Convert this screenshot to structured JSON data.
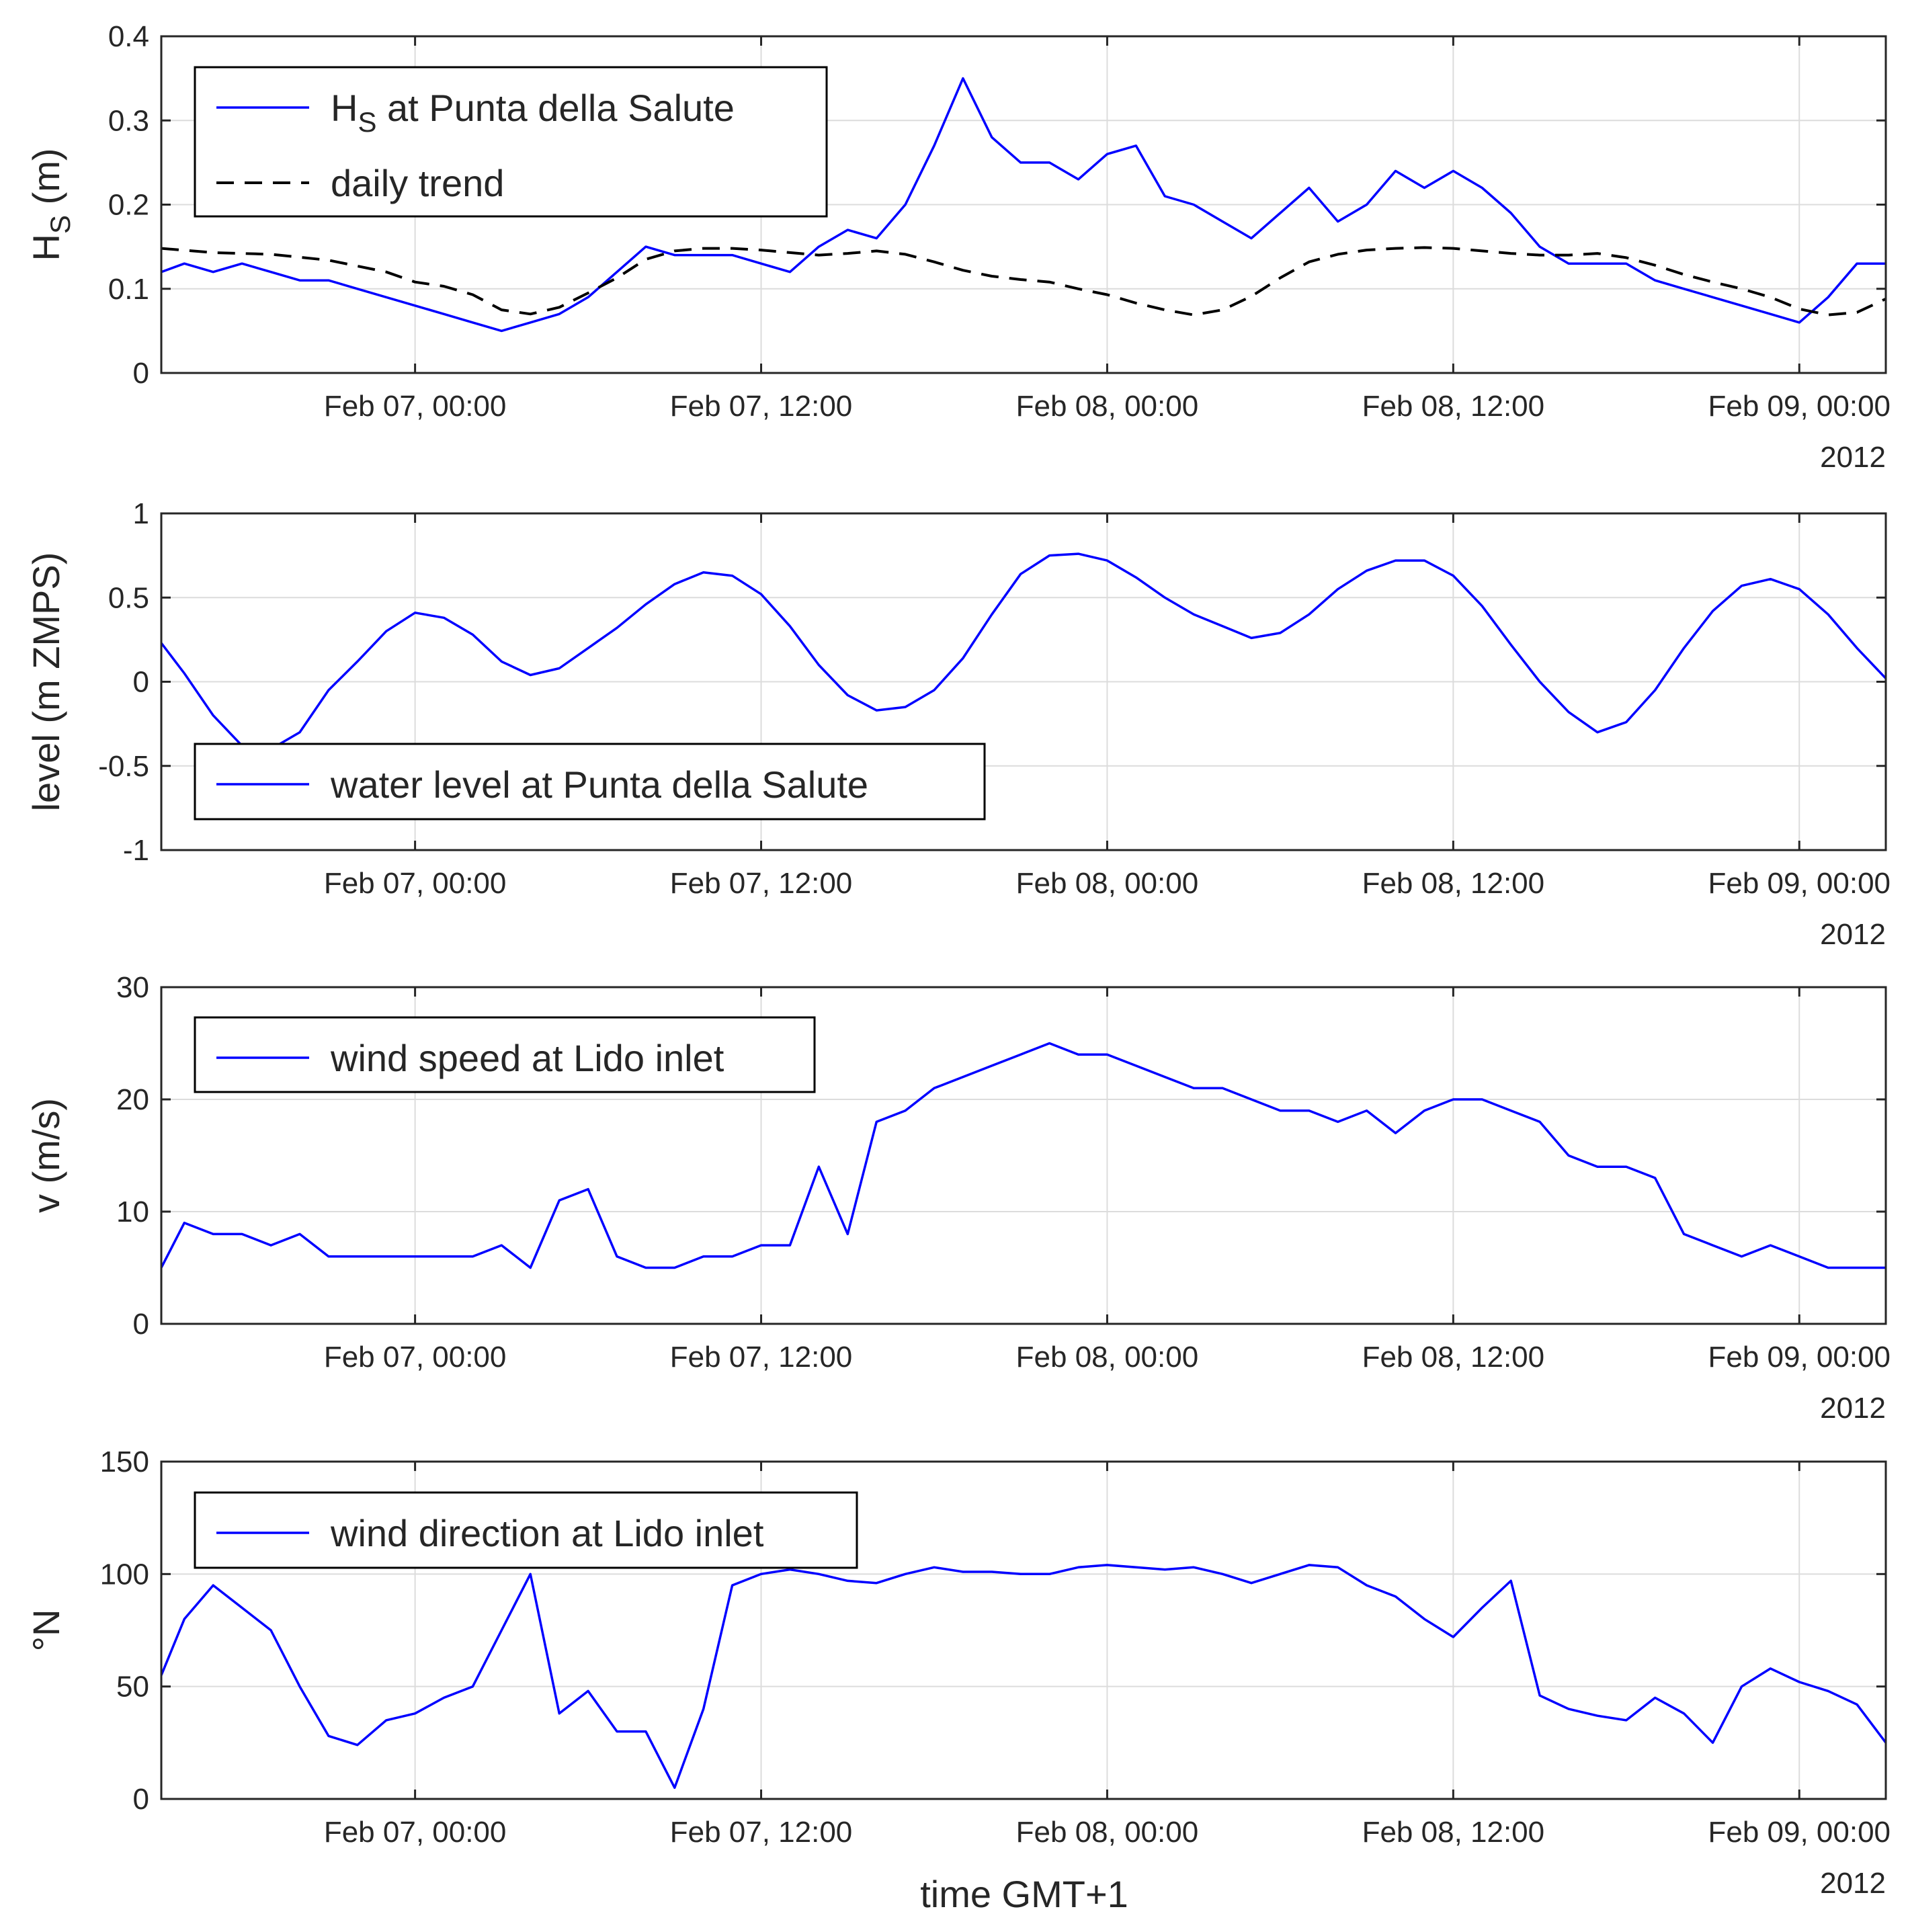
{
  "figure": {
    "xlabel": "time GMT+1",
    "year_label": "2012",
    "x_range_hours": [
      -8.8,
      51
    ],
    "x_tick_hours": [
      0,
      12,
      24,
      36,
      48
    ],
    "x_tick_labels": [
      "Feb 07, 00:00",
      "Feb 07, 12:00",
      "Feb 08, 00:00",
      "Feb 08, 12:00",
      "Feb 09, 00:00"
    ]
  },
  "colors": {
    "series": "#0000ff",
    "trend": "#000000",
    "grid": "#dcdcdc",
    "axis": "#262626"
  },
  "chart_data": [
    {
      "id": "hs",
      "type": "line",
      "ylabel": "H",
      "ylabel_sub": "S",
      "ylabel_tail": " (m)",
      "ylim": [
        0,
        0.4
      ],
      "y_ticks": [
        0,
        0.1,
        0.2,
        0.3,
        0.4
      ],
      "y_tick_labels": [
        "0",
        "0.1",
        "0.2",
        "0.3",
        "0.4"
      ],
      "legend": {
        "entries": [
          {
            "series": 0,
            "label": "H",
            "sub": "S",
            "tail": " at Punta della Salute"
          },
          {
            "series": 1,
            "label": "daily trend"
          }
        ]
      },
      "series": [
        {
          "name": "H_S at Punta della Salute",
          "style": "solid",
          "x": [
            -8.8,
            -8,
            -7,
            -6,
            -5,
            -4,
            -3,
            -2,
            -1,
            0,
            1,
            2,
            3,
            4,
            5,
            6,
            7,
            8,
            9,
            10,
            11,
            12,
            13,
            14,
            15,
            16,
            17,
            18,
            19,
            20,
            21,
            22,
            23,
            24,
            25,
            26,
            27,
            28,
            29,
            30,
            31,
            32,
            33,
            34,
            35,
            36,
            37,
            38,
            39,
            40,
            41,
            42,
            43,
            44,
            45,
            46,
            47,
            48,
            49,
            50,
            51
          ],
          "values": [
            0.12,
            0.13,
            0.12,
            0.13,
            0.12,
            0.11,
            0.11,
            0.1,
            0.09,
            0.08,
            0.07,
            0.06,
            0.05,
            0.06,
            0.07,
            0.09,
            0.12,
            0.15,
            0.14,
            0.14,
            0.14,
            0.13,
            0.12,
            0.15,
            0.17,
            0.16,
            0.2,
            0.27,
            0.35,
            0.28,
            0.25,
            0.25,
            0.23,
            0.26,
            0.27,
            0.21,
            0.2,
            0.18,
            0.16,
            0.19,
            0.22,
            0.18,
            0.2,
            0.24,
            0.22,
            0.24,
            0.22,
            0.19,
            0.15,
            0.13,
            0.13,
            0.13,
            0.11,
            0.1,
            0.09,
            0.08,
            0.07,
            0.06,
            0.09,
            0.13,
            0.13
          ]
        },
        {
          "name": "daily trend",
          "style": "dashed",
          "x": [
            -8.8,
            -7,
            -5,
            -3,
            -1,
            0,
            1,
            2,
            3,
            4,
            5,
            6,
            7,
            8,
            9,
            10,
            11,
            12,
            13,
            14,
            15,
            16,
            17,
            18,
            19,
            20,
            21,
            22,
            23,
            24,
            25,
            26,
            27,
            28,
            29,
            30,
            31,
            32,
            33,
            34,
            35,
            36,
            37,
            38,
            39,
            40,
            41,
            42,
            43,
            44,
            45,
            46,
            47,
            48,
            49,
            50,
            51
          ],
          "values": [
            0.148,
            0.143,
            0.141,
            0.134,
            0.12,
            0.108,
            0.103,
            0.093,
            0.075,
            0.07,
            0.078,
            0.095,
            0.113,
            0.135,
            0.145,
            0.148,
            0.148,
            0.146,
            0.143,
            0.14,
            0.142,
            0.145,
            0.141,
            0.132,
            0.122,
            0.115,
            0.111,
            0.108,
            0.1,
            0.093,
            0.083,
            0.075,
            0.069,
            0.075,
            0.091,
            0.113,
            0.132,
            0.141,
            0.146,
            0.148,
            0.149,
            0.148,
            0.145,
            0.142,
            0.14,
            0.14,
            0.142,
            0.137,
            0.128,
            0.117,
            0.108,
            0.1,
            0.09,
            0.076,
            0.069,
            0.072,
            0.088
          ]
        }
      ]
    },
    {
      "id": "level",
      "type": "line",
      "ylabel": "level (m ZMPS)",
      "ylim": [
        -1,
        1
      ],
      "y_ticks": [
        -1,
        -0.5,
        0,
        0.5,
        1
      ],
      "y_tick_labels": [
        "-1",
        "-0.5",
        "0",
        "0.5",
        "1"
      ],
      "legend": {
        "entries": [
          {
            "series": 0,
            "label": "water level at Punta della Salute"
          }
        ]
      },
      "series": [
        {
          "name": "water level at Punta della Salute",
          "style": "solid",
          "x": [
            -8.8,
            -8,
            -7,
            -6,
            -5,
            -4,
            -3,
            -2,
            -1,
            0,
            1,
            2,
            3,
            4,
            5,
            6,
            7,
            8,
            9,
            10,
            11,
            12,
            13,
            14,
            15,
            16,
            17,
            18,
            19,
            20,
            21,
            22,
            23,
            24,
            25,
            26,
            27,
            28,
            29,
            30,
            31,
            32,
            33,
            34,
            35,
            36,
            37,
            38,
            39,
            40,
            41,
            42,
            43,
            44,
            45,
            46,
            47,
            48,
            49,
            50,
            51
          ],
          "values": [
            0.23,
            0.05,
            -0.2,
            -0.38,
            -0.4,
            -0.3,
            -0.05,
            0.12,
            0.3,
            0.41,
            0.38,
            0.28,
            0.12,
            0.04,
            0.08,
            0.2,
            0.32,
            0.46,
            0.58,
            0.65,
            0.63,
            0.52,
            0.33,
            0.1,
            -0.08,
            -0.17,
            -0.15,
            -0.05,
            0.14,
            0.4,
            0.64,
            0.75,
            0.76,
            0.72,
            0.62,
            0.5,
            0.4,
            0.33,
            0.26,
            0.29,
            0.4,
            0.55,
            0.66,
            0.72,
            0.72,
            0.63,
            0.45,
            0.22,
            0.0,
            -0.18,
            -0.3,
            -0.24,
            -0.05,
            0.2,
            0.42,
            0.57,
            0.61,
            0.55,
            0.4,
            0.2,
            0.02
          ]
        }
      ]
    },
    {
      "id": "wind_speed",
      "type": "line",
      "ylabel": "v (m/s)",
      "ylim": [
        0,
        30
      ],
      "y_ticks": [
        0,
        10,
        20,
        30
      ],
      "y_tick_labels": [
        "0",
        "10",
        "20",
        "30"
      ],
      "legend": {
        "entries": [
          {
            "series": 0,
            "label": "wind speed at Lido inlet"
          }
        ]
      },
      "series": [
        {
          "name": "wind speed at Lido inlet",
          "style": "solid",
          "x": [
            -8.8,
            -8,
            -7,
            -6,
            -5,
            -4,
            -3,
            -2,
            -1,
            0,
            1,
            2,
            3,
            4,
            5,
            6,
            7,
            8,
            9,
            10,
            11,
            12,
            13,
            14,
            15,
            16,
            17,
            18,
            19,
            20,
            21,
            22,
            23,
            24,
            25,
            26,
            27,
            28,
            29,
            30,
            31,
            32,
            33,
            34,
            35,
            36,
            37,
            38,
            39,
            40,
            41,
            42,
            43,
            44,
            45,
            46,
            47,
            48,
            49,
            50,
            51
          ],
          "values": [
            5,
            9,
            8,
            8,
            7,
            8,
            6,
            6,
            6,
            6,
            6,
            6,
            7,
            5,
            11,
            12,
            6,
            5,
            5,
            6,
            6,
            7,
            7,
            14,
            8,
            18,
            19,
            21,
            22,
            23,
            24,
            25,
            24,
            24,
            23,
            22,
            21,
            21,
            20,
            19,
            19,
            18,
            19,
            17,
            19,
            20,
            20,
            19,
            18,
            15,
            14,
            14,
            13,
            8,
            7,
            6,
            7,
            6,
            5,
            5,
            5
          ]
        }
      ]
    },
    {
      "id": "wind_dir",
      "type": "line",
      "ylabel": "°N",
      "ylim": [
        0,
        150
      ],
      "y_ticks": [
        0,
        50,
        100,
        150
      ],
      "y_tick_labels": [
        "0",
        "50",
        "100",
        "150"
      ],
      "legend": {
        "entries": [
          {
            "series": 0,
            "label": "wind direction at Lido inlet"
          }
        ]
      },
      "series": [
        {
          "name": "wind direction at Lido inlet",
          "style": "solid",
          "x": [
            -8.8,
            -8,
            -7,
            -6,
            -5,
            -4,
            -3,
            -2,
            -1,
            0,
            1,
            2,
            3,
            4,
            5,
            6,
            7,
            8,
            9,
            10,
            11,
            12,
            13,
            14,
            15,
            16,
            17,
            18,
            19,
            20,
            21,
            22,
            23,
            24,
            25,
            26,
            27,
            28,
            29,
            30,
            31,
            32,
            33,
            34,
            35,
            36,
            37,
            38,
            39,
            40,
            41,
            42,
            43,
            44,
            45,
            46,
            47,
            48,
            49,
            50,
            51
          ],
          "values": [
            55,
            80,
            95,
            85,
            75,
            50,
            28,
            24,
            35,
            38,
            45,
            50,
            75,
            100,
            38,
            48,
            30,
            30,
            5,
            40,
            95,
            100,
            102,
            100,
            97,
            96,
            100,
            103,
            101,
            101,
            100,
            100,
            103,
            104,
            103,
            102,
            103,
            100,
            96,
            100,
            104,
            103,
            95,
            90,
            80,
            72,
            85,
            97,
            46,
            40,
            37,
            35,
            45,
            38,
            25,
            50,
            58,
            52,
            48,
            42,
            25
          ]
        }
      ]
    }
  ]
}
